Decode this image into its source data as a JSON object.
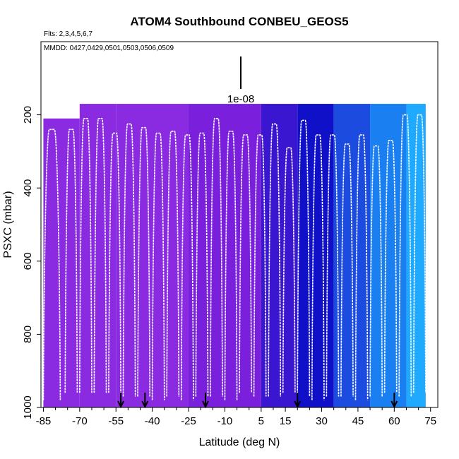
{
  "chart_data": {
    "type": "heatmap",
    "title": "ATOM4 Southbound CONBEU_GEOS5",
    "subtitle_flights": "Flts: 2,3,4,5,6,7",
    "subtitle_dates": "MMDD: 0427,0429,0501,0503,0506,0509",
    "xlabel": "Latitude (deg N)",
    "ylabel": "PSXC (mbar)",
    "x_ticks": [
      -85,
      -70,
      -55,
      -40,
      -25,
      -10,
      5,
      15,
      30,
      45,
      60,
      75
    ],
    "x_tick_labels": [
      "-85",
      "-70",
      "-55",
      "-40",
      "-25",
      "-10",
      "5",
      "15",
      "30",
      "45",
      "60",
      "75"
    ],
    "y_ticks": [
      200,
      400,
      600,
      800,
      1000
    ],
    "y_tick_labels": [
      "200",
      "400",
      "600",
      "800",
      "1000"
    ],
    "xlim": [
      -86,
      78
    ],
    "ylim": [
      1000,
      0
    ],
    "scale_label": "1e-08",
    "colors": {
      "purple": "#8a2be2",
      "dark_blue": "#0a0ac8",
      "light_blue": "#1fa9ff",
      "flight_track": "#ffffff",
      "axes": "#000000"
    },
    "profile_markers_lat": [
      -53,
      -43,
      -18,
      20,
      60
    ],
    "flight_profiles": [
      {
        "start": -85,
        "end": -78,
        "top": 240,
        "bottom": 980
      },
      {
        "start": -76,
        "end": -71,
        "top": 240,
        "bottom": 960
      },
      {
        "start": -70,
        "end": -65,
        "top": 210,
        "bottom": 960
      },
      {
        "start": -64,
        "end": -59,
        "top": 210,
        "bottom": 960
      },
      {
        "start": -58,
        "end": -53,
        "top": 250,
        "bottom": 960
      },
      {
        "start": -52,
        "end": -47,
        "top": 225,
        "bottom": 970
      },
      {
        "start": -46,
        "end": -41,
        "top": 235,
        "bottom": 970
      },
      {
        "start": -40,
        "end": -35,
        "top": 250,
        "bottom": 980
      },
      {
        "start": -34,
        "end": -29,
        "top": 245,
        "bottom": 970
      },
      {
        "start": -28,
        "end": -23,
        "top": 255,
        "bottom": 980
      },
      {
        "start": -22,
        "end": -17,
        "top": 250,
        "bottom": 970
      },
      {
        "start": -16,
        "end": -11,
        "top": 210,
        "bottom": 970
      },
      {
        "start": -10,
        "end": -5,
        "top": 245,
        "bottom": 980
      },
      {
        "start": -4,
        "end": 1,
        "top": 255,
        "bottom": 960
      },
      {
        "start": 2,
        "end": 7,
        "top": 255,
        "bottom": 970
      },
      {
        "start": 8,
        "end": 13,
        "top": 225,
        "bottom": 970
      },
      {
        "start": 14,
        "end": 19,
        "top": 290,
        "bottom": 960
      },
      {
        "start": 20,
        "end": 25,
        "top": 215,
        "bottom": 970
      },
      {
        "start": 26,
        "end": 31,
        "top": 255,
        "bottom": 980
      },
      {
        "start": 32,
        "end": 37,
        "top": 255,
        "bottom": 970
      },
      {
        "start": 38,
        "end": 43,
        "top": 280,
        "bottom": 970
      },
      {
        "start": 44,
        "end": 49,
        "top": 255,
        "bottom": 980
      },
      {
        "start": 50,
        "end": 55,
        "top": 285,
        "bottom": 970
      },
      {
        "start": 56,
        "end": 61,
        "top": 270,
        "bottom": 960
      },
      {
        "start": 62,
        "end": 67,
        "top": 200,
        "bottom": 970
      },
      {
        "start": 68,
        "end": 73,
        "top": 200,
        "bottom": 960
      }
    ],
    "curtain_segments": [
      {
        "start": -85,
        "end": -70,
        "top": 210,
        "color": "#8a2be2"
      },
      {
        "start": -70,
        "end": -55,
        "top": 170,
        "color": "#8a2be2"
      },
      {
        "start": -55,
        "end": -25,
        "top": 170,
        "color": "#8a2be2"
      },
      {
        "start": -25,
        "end": 5,
        "top": 170,
        "color": "#7a20dc"
      },
      {
        "start": 5,
        "end": 20,
        "top": 170,
        "color": "#3a16d0"
      },
      {
        "start": 20,
        "end": 35,
        "top": 170,
        "color": "#1010c8"
      },
      {
        "start": 35,
        "end": 50,
        "top": 170,
        "color": "#1c4be0"
      },
      {
        "start": 50,
        "end": 65,
        "top": 170,
        "color": "#1a7ff0"
      },
      {
        "start": 65,
        "end": 73,
        "top": 170,
        "color": "#1fa9ff"
      }
    ]
  }
}
